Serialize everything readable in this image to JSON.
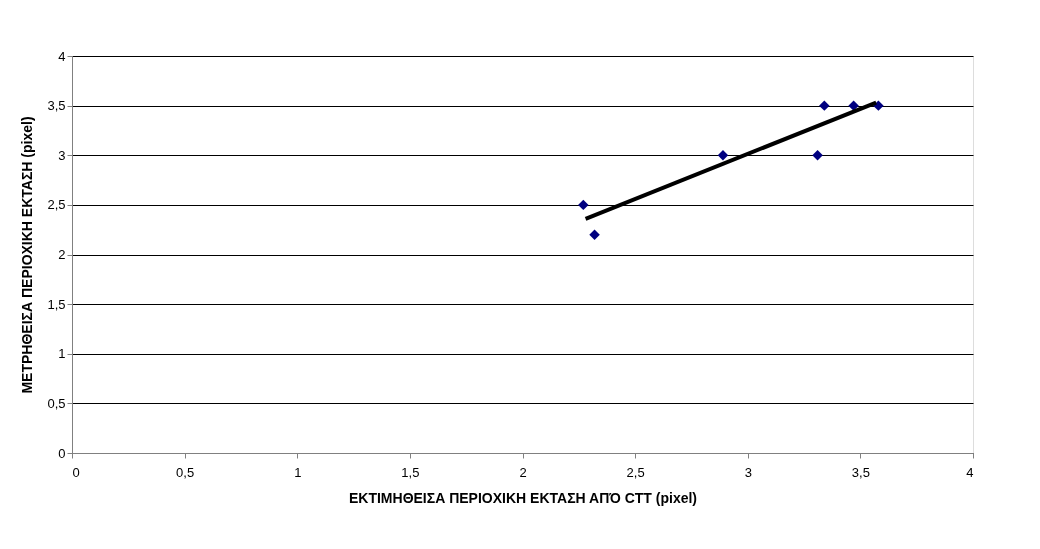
{
  "chart_data": {
    "type": "scatter",
    "xlabel": "ΕΚΤΙΜΗΘΕΙΣΑ ΠΕΡΙΟΧΙΚΗ ΕΚΤΑΣΗ ΑΠΌ CTT (pixel)",
    "ylabel": "ΜΕΤΡΗΘΕΙΣΑ ΠΕΡΙΟΧΙΚΗ ΕΚΤΑΣΗ (pixel)",
    "x": [
      2.27,
      2.32,
      2.89,
      3.31,
      3.34,
      3.47,
      3.58
    ],
    "series": [
      {
        "color": "#000080",
        "marker": "diamond",
        "values": [
          2.5,
          2.2,
          3.0,
          3.0,
          3.5,
          3.5,
          3.5
        ]
      },
      {
        "type": "line",
        "color": "#000000",
        "x": [
          2.28,
          3.57
        ],
        "values": [
          2.36,
          3.53
        ],
        "line_style": "solid"
      }
    ],
    "xlim": [
      0,
      4
    ],
    "ylim": [
      0,
      4
    ],
    "xticks": [
      {
        "value": 0,
        "label": "0"
      },
      {
        "value": 0.5,
        "label": "0,5"
      },
      {
        "value": 1,
        "label": "1"
      },
      {
        "value": 1.5,
        "label": "1,5"
      },
      {
        "value": 2,
        "label": "2"
      },
      {
        "value": 2.5,
        "label": "2,5"
      },
      {
        "value": 3,
        "label": "3"
      },
      {
        "value": 3.5,
        "label": "3,5"
      },
      {
        "value": 4,
        "label": "4"
      }
    ],
    "yticks": [
      {
        "value": 0,
        "label": "0"
      },
      {
        "value": 0.5,
        "label": "0,5"
      },
      {
        "value": 1,
        "label": "1"
      },
      {
        "value": 1.5,
        "label": "1,5"
      },
      {
        "value": 2,
        "label": "2"
      },
      {
        "value": 2.5,
        "label": "2,5"
      },
      {
        "value": 3,
        "label": "3"
      },
      {
        "value": 3.5,
        "label": "3,5"
      },
      {
        "value": 4,
        "label": "4"
      }
    ],
    "grid": "y",
    "legend": false
  }
}
